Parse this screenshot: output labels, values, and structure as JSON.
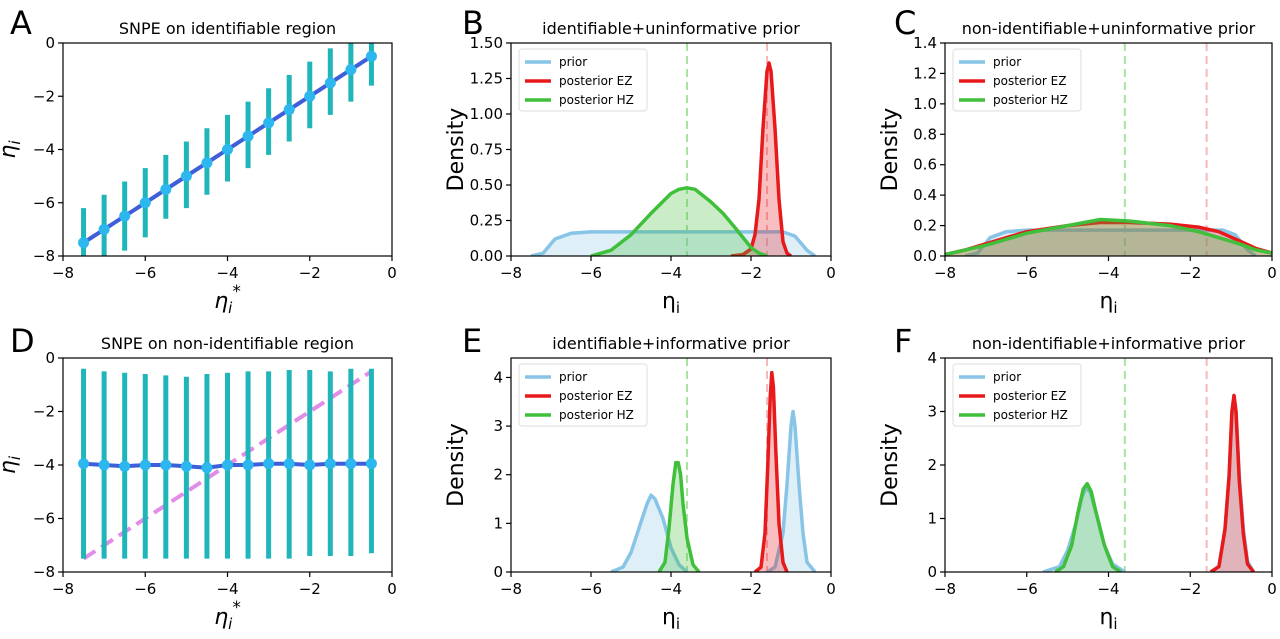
{
  "panels": [
    {
      "label": "A",
      "title": "SNPE on identifiable region",
      "xlabel": "ηi*",
      "ylabel": "η̄i",
      "chart_data": {
        "type": "scatter",
        "xlim": [
          -8,
          0
        ],
        "ylim": [
          -8,
          0
        ],
        "xticks": [
          "−8",
          "−6",
          "−4",
          "−2",
          "0"
        ],
        "yticks": [
          "−8",
          "−6",
          "−4",
          "−2",
          "0"
        ],
        "identity_line": true,
        "x": [
          -7.5,
          -7.0,
          -6.5,
          -6.0,
          -5.5,
          -5.0,
          -4.5,
          -4.0,
          -3.5,
          -3.0,
          -2.5,
          -2.0,
          -1.5,
          -1.0,
          -0.5
        ],
        "y": [
          -7.5,
          -7.0,
          -6.5,
          -6.0,
          -5.5,
          -5.0,
          -4.5,
          -4.0,
          -3.5,
          -3.0,
          -2.5,
          -2.0,
          -1.5,
          -1.0,
          -0.5
        ],
        "err_low": [
          -8.0,
          -8.0,
          -7.8,
          -7.3,
          -6.6,
          -6.2,
          -5.7,
          -5.2,
          -4.7,
          -4.2,
          -3.7,
          -3.2,
          -2.7,
          -2.2,
          -1.6
        ],
        "err_high": [
          -6.2,
          -5.7,
          -5.2,
          -4.7,
          -4.2,
          -3.7,
          -3.2,
          -2.7,
          -2.2,
          -1.7,
          -1.2,
          -0.7,
          -0.2,
          0.0,
          0.0
        ]
      }
    },
    {
      "label": "B",
      "title": "identifiable+uninformative prior",
      "xlabel": "ηi",
      "ylabel": "Density",
      "chart_data": {
        "type": "area",
        "xlim": [
          -8,
          0
        ],
        "ylim": [
          0,
          1.5
        ],
        "xticks": [
          "−8",
          "−6",
          "−4",
          "−2",
          "0"
        ],
        "yticks": [
          "0.00",
          "0.25",
          "0.50",
          "0.75",
          "1.00",
          "1.25",
          "1.50"
        ],
        "legend": [
          "prior",
          "posterior EZ",
          "posterior HZ"
        ],
        "legend_position": "top-left",
        "vlines": [
          {
            "x": -3.6,
            "color": "#a8e4a0"
          },
          {
            "x": -1.6,
            "color": "#f7b8b8"
          }
        ],
        "series": [
          {
            "name": "prior",
            "color": "#87c4e5",
            "x": [
              -7.5,
              -7.2,
              -6.9,
              -6.5,
              -6,
              -5,
              -4,
              -3,
              -2,
              -1.5,
              -1.2,
              -0.9,
              -0.6,
              -0.4
            ],
            "values": [
              0,
              0.02,
              0.12,
              0.16,
              0.17,
              0.17,
              0.17,
              0.17,
              0.17,
              0.17,
              0.17,
              0.14,
              0.04,
              0
            ]
          },
          {
            "name": "posterior EZ",
            "color": "#e8191b",
            "x": [
              -2.5,
              -2.2,
              -2.0,
              -1.9,
              -1.8,
              -1.7,
              -1.6,
              -1.55,
              -1.5,
              -1.4,
              -1.3,
              -1.2,
              -1.1,
              -1.0
            ],
            "values": [
              0,
              0.01,
              0.05,
              0.15,
              0.4,
              0.9,
              1.3,
              1.36,
              1.3,
              0.9,
              0.4,
              0.1,
              0.02,
              0
            ]
          },
          {
            "name": "posterior HZ",
            "color": "#3fbf3a",
            "x": [
              -6.0,
              -5.5,
              -5.0,
              -4.5,
              -4.0,
              -3.8,
              -3.6,
              -3.4,
              -3.0,
              -2.7,
              -2.4,
              -2.0,
              -1.8,
              -1.6
            ],
            "values": [
              0,
              0.04,
              0.15,
              0.3,
              0.44,
              0.47,
              0.48,
              0.47,
              0.38,
              0.3,
              0.2,
              0.06,
              0.02,
              0
            ]
          }
        ]
      }
    },
    {
      "label": "C",
      "title": "non-identifiable+uninformative prior",
      "xlabel": "ηi",
      "ylabel": "Density",
      "chart_data": {
        "type": "area",
        "xlim": [
          -8,
          0
        ],
        "ylim": [
          0,
          1.4
        ],
        "xticks": [
          "−8",
          "−6",
          "−4",
          "−2",
          "0"
        ],
        "yticks": [
          "0.0",
          "0.2",
          "0.4",
          "0.6",
          "0.8",
          "1.0",
          "1.2",
          "1.4"
        ],
        "legend": [
          "prior",
          "posterior EZ",
          "posterior HZ"
        ],
        "legend_position": "top-left",
        "vlines": [
          {
            "x": -3.6,
            "color": "#a8e4a0"
          },
          {
            "x": -1.6,
            "color": "#f7b8b8"
          }
        ],
        "series": [
          {
            "name": "prior",
            "color": "#87c4e5",
            "x": [
              -7.5,
              -7.2,
              -6.9,
              -6.5,
              -6,
              -5,
              -4,
              -3,
              -2,
              -1.5,
              -1.2,
              -0.9,
              -0.6,
              -0.4
            ],
            "values": [
              0,
              0.02,
              0.12,
              0.16,
              0.17,
              0.17,
              0.17,
              0.17,
              0.17,
              0.17,
              0.17,
              0.14,
              0.04,
              0
            ]
          },
          {
            "name": "posterior EZ",
            "color": "#e8191b",
            "x": [
              -8,
              -7.5,
              -7,
              -6.5,
              -6,
              -5,
              -4.2,
              -3.5,
              -2.5,
              -1.8,
              -1.3,
              -0.8,
              -0.4,
              0
            ],
            "values": [
              0.01,
              0.04,
              0.08,
              0.12,
              0.16,
              0.2,
              0.22,
              0.22,
              0.21,
              0.19,
              0.16,
              0.1,
              0.05,
              0.02
            ]
          },
          {
            "name": "posterior HZ",
            "color": "#3fbf3a",
            "x": [
              -8,
              -7.5,
              -7,
              -6.5,
              -6,
              -5,
              -4.2,
              -3.5,
              -2.5,
              -1.8,
              -1.3,
              -0.8,
              -0.4,
              0
            ],
            "values": [
              0.01,
              0.04,
              0.07,
              0.11,
              0.15,
              0.2,
              0.24,
              0.23,
              0.2,
              0.16,
              0.12,
              0.08,
              0.04,
              0.02
            ]
          }
        ]
      }
    },
    {
      "label": "D",
      "title": "SNPE on non-identifiable region",
      "xlabel": "ηi*",
      "ylabel": "η̄i",
      "chart_data": {
        "type": "scatter",
        "xlim": [
          -8,
          0
        ],
        "ylim": [
          -8,
          0
        ],
        "xticks": [
          "−8",
          "−6",
          "−4",
          "−2",
          "0"
        ],
        "yticks": [
          "−8",
          "−6",
          "−4",
          "−2",
          "0"
        ],
        "identity_line": true,
        "x": [
          -7.5,
          -7.0,
          -6.5,
          -6.0,
          -5.5,
          -5.0,
          -4.5,
          -4.0,
          -3.5,
          -3.0,
          -2.5,
          -2.0,
          -1.5,
          -1.0,
          -0.5
        ],
        "y": [
          -3.95,
          -4.0,
          -4.05,
          -4.0,
          -4.0,
          -4.05,
          -4.1,
          -4.0,
          -4.0,
          -3.95,
          -3.95,
          -4.0,
          -3.95,
          -3.95,
          -3.95
        ],
        "err_low": [
          -7.5,
          -7.5,
          -7.5,
          -7.5,
          -7.5,
          -7.5,
          -7.5,
          -7.5,
          -7.5,
          -7.5,
          -7.5,
          -7.4,
          -7.4,
          -7.4,
          -7.3
        ],
        "err_high": [
          -0.4,
          -0.5,
          -0.55,
          -0.6,
          -0.65,
          -0.7,
          -0.6,
          -0.55,
          -0.5,
          -0.5,
          -0.45,
          -0.45,
          -0.5,
          -0.4,
          -0.4
        ]
      }
    },
    {
      "label": "E",
      "title": "identifiable+informative prior",
      "xlabel": "ηi",
      "ylabel": "Density",
      "chart_data": {
        "type": "area",
        "xlim": [
          -8,
          0
        ],
        "ylim": [
          0,
          4.4
        ],
        "xticks": [
          "−8",
          "−6",
          "−4",
          "−2",
          "0"
        ],
        "yticks": [
          "0",
          "1",
          "2",
          "3",
          "4"
        ],
        "legend": [
          "prior",
          "posterior EZ",
          "posterior HZ"
        ],
        "legend_position": "top-left",
        "vlines": [
          {
            "x": -3.6,
            "color": "#a8e4a0"
          },
          {
            "x": -1.6,
            "color": "#f7b8b8"
          }
        ],
        "series": [
          {
            "name": "prior",
            "color": "#87c4e5",
            "x": [
              -5.5,
              -5.2,
              -5.0,
              -4.8,
              -4.6,
              -4.5,
              -4.4,
              -4.2,
              -4.0,
              -3.8,
              -3.6
            ],
            "values": [
              0,
              0.1,
              0.4,
              0.9,
              1.4,
              1.58,
              1.5,
              1.1,
              0.5,
              0.15,
              0
            ]
          },
          {
            "name": "prior",
            "color": "#87c4e5",
            "x": [
              -1.6,
              -1.4,
              -1.2,
              -1.1,
              -1.0,
              -0.95,
              -0.9,
              -0.8,
              -0.7,
              -0.6,
              -0.4
            ],
            "values": [
              0,
              0.1,
              0.8,
              1.8,
              3.0,
              3.3,
              3.0,
              1.8,
              0.8,
              0.2,
              0
            ]
          },
          {
            "name": "posterior EZ",
            "color": "#e8191b",
            "x": [
              -1.9,
              -1.75,
              -1.65,
              -1.58,
              -1.52,
              -1.48,
              -1.44,
              -1.38,
              -1.3,
              -1.2,
              -1.1
            ],
            "values": [
              0,
              0.1,
              0.8,
              2.2,
              3.6,
              4.1,
              3.8,
              2.5,
              1.0,
              0.2,
              0
            ]
          },
          {
            "name": "posterior HZ",
            "color": "#3fbf3a",
            "x": [
              -4.3,
              -4.15,
              -4.05,
              -3.95,
              -3.88,
              -3.82,
              -3.76,
              -3.7,
              -3.6,
              -3.45,
              -3.3
            ],
            "values": [
              0,
              0.2,
              0.9,
              1.8,
              2.25,
              2.25,
              2.0,
              1.4,
              0.7,
              0.15,
              0
            ]
          }
        ]
      }
    },
    {
      "label": "F",
      "title": "non-identifiable+informative prior",
      "xlabel": "ηi",
      "ylabel": "Density",
      "chart_data": {
        "type": "area",
        "xlim": [
          -8,
          0
        ],
        "ylim": [
          0,
          4
        ],
        "xticks": [
          "−8",
          "−6",
          "−4",
          "−2",
          "0"
        ],
        "yticks": [
          "0",
          "1",
          "2",
          "3",
          "4"
        ],
        "legend": [
          "prior",
          "posterior EZ",
          "posterior HZ"
        ],
        "legend_position": "top-left",
        "vlines": [
          {
            "x": -3.6,
            "color": "#a8e4a0"
          },
          {
            "x": -1.6,
            "color": "#f7b8b8"
          }
        ],
        "series": [
          {
            "name": "prior",
            "color": "#87c4e5",
            "x": [
              -5.6,
              -5.2,
              -5.0,
              -4.8,
              -4.65,
              -4.55,
              -4.45,
              -4.3,
              -4.1,
              -3.9,
              -3.6
            ],
            "values": [
              0,
              0.1,
              0.4,
              0.9,
              1.4,
              1.58,
              1.5,
              1.1,
              0.5,
              0.15,
              0
            ]
          },
          {
            "name": "prior",
            "color": "#87c4e5",
            "x": [
              -1.5,
              -1.3,
              -1.15,
              -1.05,
              -0.98,
              -0.93,
              -0.88,
              -0.8,
              -0.7,
              -0.6,
              -0.45
            ],
            "values": [
              0,
              0.1,
              0.8,
              1.8,
              2.9,
              3.3,
              3.0,
              1.8,
              0.8,
              0.2,
              0
            ]
          },
          {
            "name": "posterior EZ",
            "color": "#e8191b",
            "x": [
              -1.5,
              -1.3,
              -1.15,
              -1.05,
              -0.98,
              -0.93,
              -0.88,
              -0.8,
              -0.7,
              -0.6,
              -0.45
            ],
            "values": [
              0,
              0.1,
              0.8,
              1.8,
              3.0,
              3.3,
              3.0,
              1.7,
              0.7,
              0.15,
              0
            ]
          },
          {
            "name": "posterior HZ",
            "color": "#3fbf3a",
            "x": [
              -5.3,
              -5.1,
              -4.9,
              -4.75,
              -4.62,
              -4.52,
              -4.42,
              -4.3,
              -4.1,
              -3.9,
              -3.7
            ],
            "values": [
              0,
              0.1,
              0.5,
              1.1,
              1.55,
              1.65,
              1.5,
              1.1,
              0.5,
              0.1,
              0
            ]
          }
        ]
      }
    }
  ]
}
